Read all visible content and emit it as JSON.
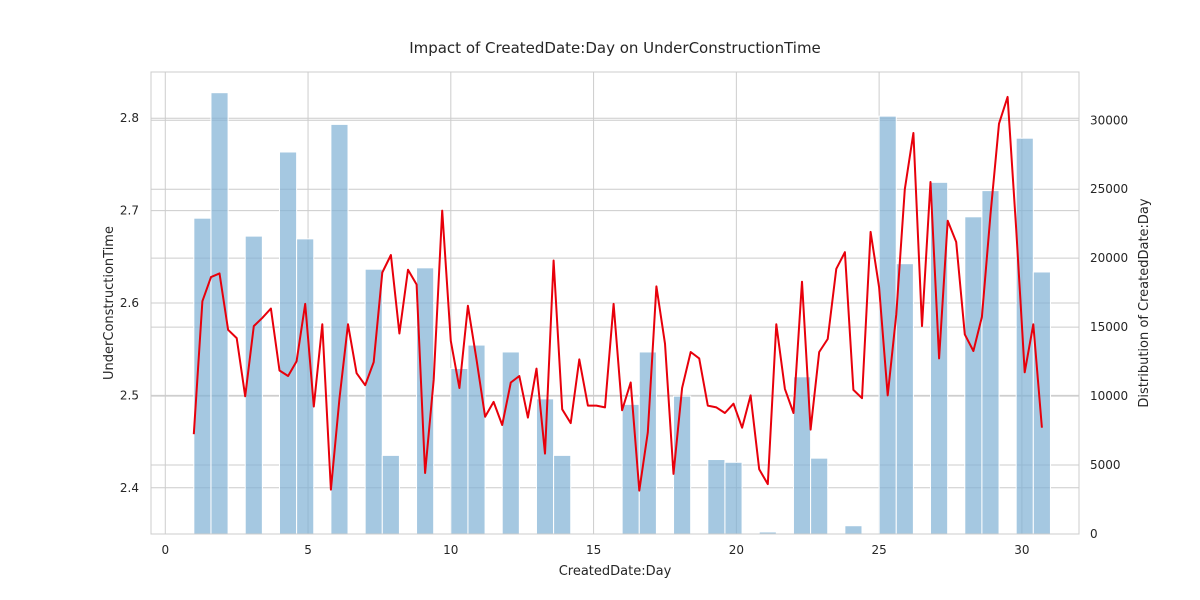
{
  "chart_data": {
    "type": "bar",
    "title": "Impact of CreatedDate:Day on UnderConstructionTime",
    "xlabel": "CreatedDate:Day",
    "ylabel_left": "UnderConstructionTime",
    "ylabel_right": "Distribution of CreatedDate:Day",
    "xlim": [
      -0.5,
      32.0
    ],
    "xticks": [
      0,
      5,
      10,
      15,
      20,
      25,
      30
    ],
    "ylim_left": [
      2.35,
      2.85
    ],
    "yticks_left": [
      2.4,
      2.5,
      2.6,
      2.7,
      2.8
    ],
    "ylim_right": [
      0,
      33500
    ],
    "yticks_right": [
      0,
      5000,
      10000,
      15000,
      20000,
      25000,
      30000
    ],
    "grid": true,
    "bar_color": "#7fb0d4",
    "line_color": "#e8000b",
    "histogram": {
      "name": "Distribution of CreatedDate:Day",
      "axis": "right",
      "bin_width": 0.6,
      "bars": [
        {
          "x": 1.3,
          "value": 22900
        },
        {
          "x": 1.9,
          "value": 32000
        },
        {
          "x": 3.1,
          "value": 21600
        },
        {
          "x": 4.3,
          "value": 27700
        },
        {
          "x": 4.9,
          "value": 21400
        },
        {
          "x": 6.1,
          "value": 29700
        },
        {
          "x": 7.3,
          "value": 19200
        },
        {
          "x": 7.9,
          "value": 5700
        },
        {
          "x": 9.1,
          "value": 19300
        },
        {
          "x": 10.3,
          "value": 12000
        },
        {
          "x": 10.9,
          "value": 13700
        },
        {
          "x": 12.1,
          "value": 13200
        },
        {
          "x": 13.3,
          "value": 9800
        },
        {
          "x": 13.9,
          "value": 5700
        },
        {
          "x": 16.3,
          "value": 9400
        },
        {
          "x": 16.9,
          "value": 13200
        },
        {
          "x": 18.1,
          "value": 10000
        },
        {
          "x": 19.3,
          "value": 5400
        },
        {
          "x": 19.9,
          "value": 5200
        },
        {
          "x": 21.1,
          "value": 150
        },
        {
          "x": 22.3,
          "value": 11400
        },
        {
          "x": 22.9,
          "value": 5500
        },
        {
          "x": 24.1,
          "value": 600
        },
        {
          "x": 25.3,
          "value": 30300
        },
        {
          "x": 25.9,
          "value": 19600
        },
        {
          "x": 27.1,
          "value": 25500
        },
        {
          "x": 28.3,
          "value": 23000
        },
        {
          "x": 28.9,
          "value": 24900
        },
        {
          "x": 30.1,
          "value": 28700
        },
        {
          "x": 30.7,
          "value": 19000
        }
      ]
    },
    "series": [
      {
        "axis": "left",
        "x": [
          1.0,
          1.3,
          1.6,
          1.9,
          2.2,
          2.5,
          2.8,
          3.1,
          3.4,
          3.7,
          4.0,
          4.3,
          4.6,
          4.9,
          5.2,
          5.5,
          5.8,
          6.1,
          6.4,
          6.7,
          7.0,
          7.3,
          7.6,
          7.9,
          8.2,
          8.5,
          8.8,
          9.1,
          9.4,
          9.7,
          10.0,
          10.3,
          10.6,
          10.9,
          11.2,
          11.5,
          11.8,
          12.1,
          12.4,
          12.7,
          13.0,
          13.3,
          13.6,
          13.9,
          14.2,
          14.5,
          14.8,
          15.1,
          15.4,
          15.7,
          16.0,
          16.3,
          16.6,
          16.9,
          17.2,
          17.5,
          17.8,
          18.1,
          18.4,
          18.7,
          19.0,
          19.3,
          19.6,
          19.9,
          20.2,
          20.5,
          20.8,
          21.1,
          21.4,
          21.7,
          22.0,
          22.3,
          22.6,
          22.9,
          23.2,
          23.5,
          23.8,
          24.1,
          24.4,
          24.7,
          25.0,
          25.3,
          25.6,
          25.9,
          26.2,
          26.5,
          26.8,
          27.1,
          27.4,
          27.7,
          28.0,
          28.3,
          28.6,
          28.9,
          29.2,
          29.5,
          29.8,
          30.1,
          30.4,
          30.7
        ],
        "y": [
          2.458,
          2.602,
          2.628,
          2.632,
          2.571,
          2.562,
          2.499,
          2.575,
          2.584,
          2.594,
          2.527,
          2.521,
          2.537,
          2.599,
          2.488,
          2.577,
          2.398,
          2.497,
          2.577,
          2.524,
          2.511,
          2.536,
          2.633,
          2.652,
          2.567,
          2.636,
          2.62,
          2.416,
          2.517,
          2.7,
          2.559,
          2.508,
          2.597,
          2.539,
          2.477,
          2.493,
          2.468,
          2.514,
          2.521,
          2.476,
          2.529,
          2.437,
          2.646,
          2.485,
          2.47,
          2.539,
          2.489,
          2.489,
          2.487,
          2.599,
          2.484,
          2.514,
          2.397,
          2.46,
          2.618,
          2.556,
          2.415,
          2.508,
          2.547,
          2.54,
          2.489,
          2.487,
          2.481,
          2.491,
          2.465,
          2.5,
          2.42,
          2.404,
          2.577,
          2.507,
          2.481,
          2.623,
          2.463,
          2.547,
          2.561,
          2.637,
          2.655,
          2.506,
          2.497,
          2.677,
          2.617,
          2.5,
          2.588,
          2.723,
          2.784,
          2.575,
          2.731,
          2.54,
          2.689,
          2.666,
          2.566,
          2.548,
          2.585,
          2.696,
          2.794,
          2.823,
          2.68,
          2.525,
          2.577,
          2.465
        ]
      }
    ]
  }
}
